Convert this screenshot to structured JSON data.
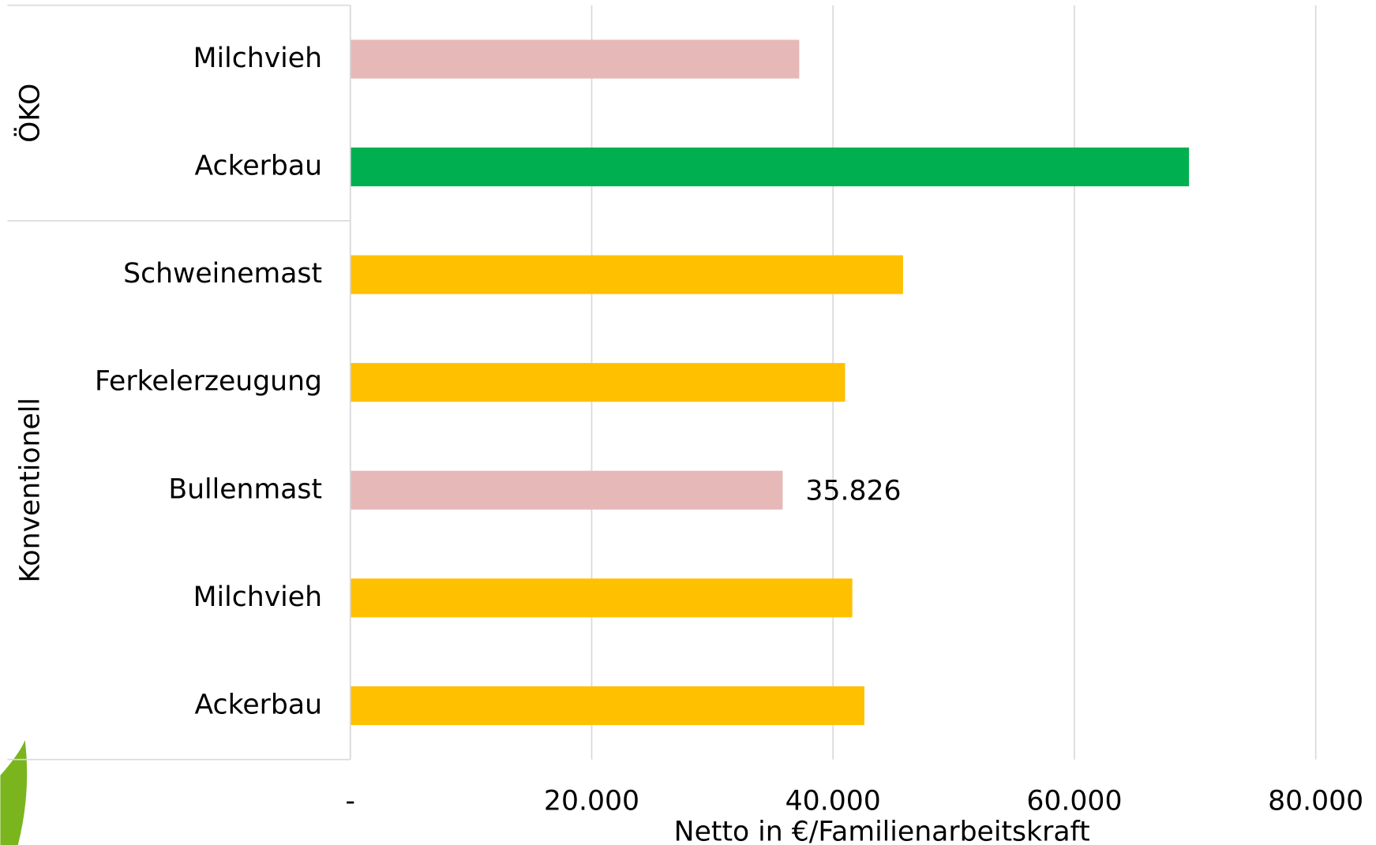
{
  "chart_data": {
    "type": "hbar",
    "categories": [
      "Milchvieh",
      "Ackerbau",
      "Schweinemast",
      "Ferkelerzeugung",
      "Bullenmast",
      "Milchvieh",
      "Ackerbau"
    ],
    "groups": [
      {
        "label": "ÖKO",
        "size": 2
      },
      {
        "label": "Konventionell",
        "size": 5
      }
    ],
    "values": [
      37200,
      69500,
      45800,
      41000,
      35826,
      41600,
      42600
    ],
    "value_labels": [
      null,
      null,
      null,
      null,
      "35.826",
      null,
      null
    ],
    "colors": [
      "#e6b8b7",
      "#00b050",
      "#ffc000",
      "#ffc000",
      "#e6b8b7",
      "#ffc000",
      "#ffc000"
    ],
    "xlim": [
      0,
      80000
    ],
    "xticks": [
      {
        "value": 0,
        "label": "-"
      },
      {
        "value": 20000,
        "label": "20.000"
      },
      {
        "value": 40000,
        "label": "40.000"
      },
      {
        "value": 60000,
        "label": "60.000"
      },
      {
        "value": 80000,
        "label": "80.000"
      }
    ],
    "xlabel": "Netto in €/Familienarbeitskraft",
    "grid": true
  }
}
